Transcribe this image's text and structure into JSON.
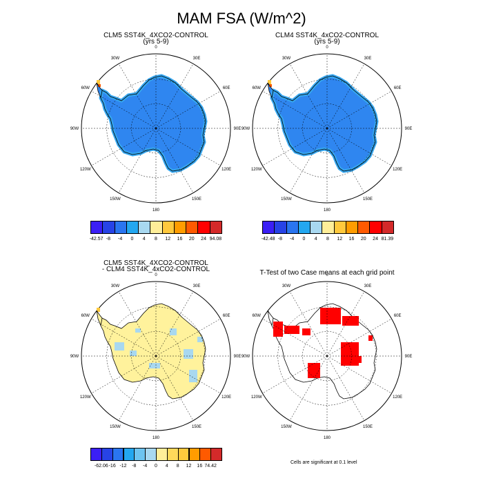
{
  "figure": {
    "title": "MAM FSA (W/m^2)",
    "lon_labels": [
      "0",
      "30E",
      "60E",
      "90E",
      "120E",
      "150E",
      "180",
      "150W",
      "120W",
      "90W",
      "60W",
      "30W"
    ]
  },
  "panels": [
    {
      "id": "p1",
      "title_lines": [
        "CLM5 SST4K_4XCO2-CONTROL",
        "(yrs 5-9)"
      ],
      "fill": "anomaly-blue"
    },
    {
      "id": "p2",
      "title_lines": [
        "CLM4 SST4K_4xCO2-CONTROL",
        "(yrs 5-9)"
      ],
      "fill": "anomaly-blue"
    },
    {
      "id": "p3",
      "title_lines": [
        "CLM5 SST4K_4XCO2-CONTROL",
        "- CLM4 SST4K_4xCO2-CONTROL"
      ],
      "fill": "difference"
    },
    {
      "id": "p4",
      "title_lines": [
        "T-Test of two Case means at each grid point"
      ],
      "fill": "significance",
      "note": "Cells are significant at 0.1 level"
    }
  ],
  "colorbars": [
    {
      "id": "cb1",
      "labels": [
        "-42.57",
        "-8",
        "-4",
        "0",
        "4",
        "8",
        "12",
        "16",
        "20",
        "24",
        "94.08"
      ],
      "colors": [
        "#3b1ff5",
        "#2743e6",
        "#2a75f0",
        "#23a7f0",
        "#a8d8f0",
        "#ffee99",
        "#ffc93d",
        "#ff9c00",
        "#ff5a00",
        "#ff0000",
        "#d42a2a"
      ]
    },
    {
      "id": "cb2",
      "labels": [
        "-42.48",
        "-8",
        "-4",
        "0",
        "4",
        "8",
        "12",
        "16",
        "20",
        "24",
        "81.39"
      ],
      "colors": [
        "#3b1ff5",
        "#2743e6",
        "#2a75f0",
        "#23a7f0",
        "#a8d8f0",
        "#ffee99",
        "#ffc93d",
        "#ff9c00",
        "#ff5a00",
        "#ff0000",
        "#d42a2a"
      ]
    },
    {
      "id": "cb3",
      "labels": [
        "-62.06",
        "-16",
        "-12",
        "-8",
        "-4",
        "0",
        "4",
        "8",
        "12",
        "16",
        "74.42"
      ],
      "colors": [
        "#3b1ff5",
        "#2743e6",
        "#2a75f0",
        "#23a7f0",
        "#6dc4f0",
        "#a8d8f0",
        "#ffee99",
        "#ffd95a",
        "#ffc93d",
        "#ff9c00",
        "#ff5a00",
        "#d42a2a"
      ]
    }
  ],
  "colors": {
    "ocean": "#ffffff",
    "land_blue": "#2f86f0",
    "land_light": "#36a7f0",
    "land_yellow": "#fff29c",
    "land_paleblue": "#a8d8f0",
    "significant": "#ff0000",
    "coast": "#000000"
  }
}
